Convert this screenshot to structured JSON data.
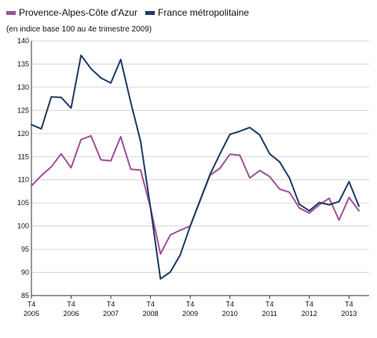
{
  "legend": [
    {
      "name": "Provence-Alpes-Côte d'Azur",
      "color": "#a0509a"
    },
    {
      "name": "France métropolitaine",
      "color": "#1f3c64"
    }
  ],
  "subtitle": "(en indice base 100 au 4e trimestre 2009)",
  "chart_data": {
    "type": "line",
    "title": "",
    "xlabel": "",
    "ylabel": "",
    "ylim": [
      85,
      140
    ],
    "yticks": [
      85,
      90,
      95,
      100,
      105,
      110,
      115,
      120,
      125,
      130,
      135,
      140
    ],
    "x_tick_labels": [
      {
        "q": "T4",
        "year": "2005"
      },
      {
        "q": "T4",
        "year": "2006"
      },
      {
        "q": "T4",
        "year": "2007"
      },
      {
        "q": "T4",
        "year": "2008"
      },
      {
        "q": "T4",
        "year": "2009"
      },
      {
        "q": "T4",
        "year": "2010"
      },
      {
        "q": "T4",
        "year": "2011"
      },
      {
        "q": "T4",
        "year": "2012"
      },
      {
        "q": "T4",
        "year": "2013"
      }
    ],
    "x": [
      "2005 T4",
      "2006 T1",
      "2006 T2",
      "2006 T3",
      "2006 T4",
      "2007 T1",
      "2007 T2",
      "2007 T3",
      "2007 T4",
      "2008 T1",
      "2008 T2",
      "2008 T3",
      "2008 T4",
      "2009 T1",
      "2009 T2",
      "2009 T3",
      "2009 T4",
      "2010 T1",
      "2010 T2",
      "2010 T3",
      "2010 T4",
      "2011 T1",
      "2011 T2",
      "2011 T3",
      "2011 T4",
      "2012 T1",
      "2012 T2",
      "2012 T3",
      "2012 T4",
      "2013 T1",
      "2013 T2",
      "2013 T3",
      "2013 T4",
      "2014 T1"
    ],
    "series": [
      {
        "name": "Provence-Alpes-Côte d'Azur",
        "color": "#a0509a",
        "values": [
          108.7,
          110.9,
          112.8,
          115.6,
          112.6,
          118.7,
          119.5,
          114.3,
          114.1,
          119.3,
          112.3,
          112.1,
          104.0,
          94.0,
          98.1,
          99.1,
          100.0,
          105.5,
          111.0,
          112.5,
          115.5,
          115.3,
          110.4,
          112.0,
          110.7,
          108.0,
          107.3,
          103.9,
          102.8,
          104.6,
          106.0,
          101.3,
          106.2,
          103.3
        ]
      },
      {
        "name": "France métropolitaine",
        "color": "#1f3c64",
        "values": [
          121.9,
          121.0,
          127.9,
          127.8,
          125.5,
          136.9,
          134.0,
          132.0,
          130.9,
          136.0,
          126.8,
          118.3,
          104.0,
          88.6,
          90.1,
          93.8,
          100.0,
          105.6,
          111.2,
          115.6,
          119.8,
          120.5,
          121.3,
          119.7,
          115.6,
          113.9,
          110.4,
          104.7,
          103.3,
          105.1,
          104.6,
          105.3,
          109.6,
          104.3
        ]
      }
    ]
  }
}
